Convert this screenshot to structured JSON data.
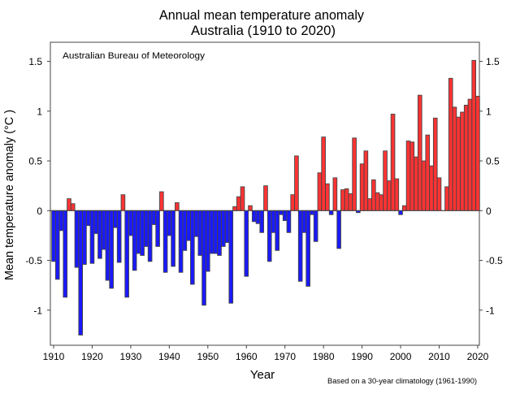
{
  "chart_data": {
    "type": "bar",
    "title": [
      "Annual mean temperature anomaly",
      "Australia (1910 to 2020)"
    ],
    "annotation": "Australian Bureau of Meteorology",
    "footnote": "Based on a 30-year climatology (1961-1990)",
    "xlabel": "Year",
    "ylabel": "Mean temperature anomaly (°C )",
    "xlim": [
      1909,
      2021
    ],
    "ylim": [
      -1.4,
      1.52
    ],
    "xticks": [
      1910,
      1920,
      1930,
      1940,
      1950,
      1960,
      1970,
      1980,
      1990,
      2000,
      2010,
      2020
    ],
    "yticks": [
      -1,
      -0.5,
      0,
      0.5,
      1,
      1.5
    ],
    "ytick_labels": [
      "-1",
      "-0.5",
      "0",
      "0.5",
      "1",
      "1.5"
    ],
    "grid": false,
    "colors": {
      "positive": "#ff3333",
      "negative": "#1a1aff",
      "outline": "#444444"
    },
    "start_year": 1910,
    "values": [
      -0.51,
      -0.69,
      -0.2,
      -0.87,
      0.12,
      0.07,
      -0.57,
      -1.25,
      -0.54,
      -0.15,
      -0.53,
      -0.23,
      -0.48,
      -0.39,
      -0.7,
      -0.78,
      -0.17,
      -0.52,
      0.16,
      -0.87,
      -0.25,
      -0.6,
      -0.43,
      -0.45,
      -0.36,
      -0.51,
      -0.14,
      -0.36,
      0.19,
      -0.62,
      -0.25,
      -0.56,
      0.08,
      -0.62,
      -0.4,
      -0.3,
      -0.74,
      -0.26,
      -0.45,
      -0.95,
      -0.61,
      -0.43,
      -0.43,
      -0.45,
      -0.36,
      -0.32,
      -0.93,
      0.04,
      0.14,
      0.24,
      -0.66,
      0.05,
      -0.11,
      -0.13,
      -0.22,
      0.25,
      -0.51,
      -0.22,
      -0.4,
      -0.04,
      -0.1,
      -0.22,
      0.16,
      0.55,
      -0.71,
      -0.22,
      -0.76,
      -0.04,
      -0.31,
      0.38,
      0.74,
      0.27,
      -0.04,
      0.33,
      -0.38,
      0.21,
      0.22,
      0.17,
      0.73,
      -0.02,
      0.47,
      0.6,
      0.12,
      0.31,
      0.18,
      0.16,
      0.6,
      0.3,
      0.97,
      0.32,
      -0.04,
      0.05,
      0.7,
      0.69,
      0.54,
      1.16,
      0.5,
      0.76,
      0.45,
      0.93,
      0.33,
      0.0,
      0.24,
      1.33,
      1.04,
      0.94,
      0.99,
      1.06,
      1.12,
      1.51,
      1.15
    ]
  }
}
